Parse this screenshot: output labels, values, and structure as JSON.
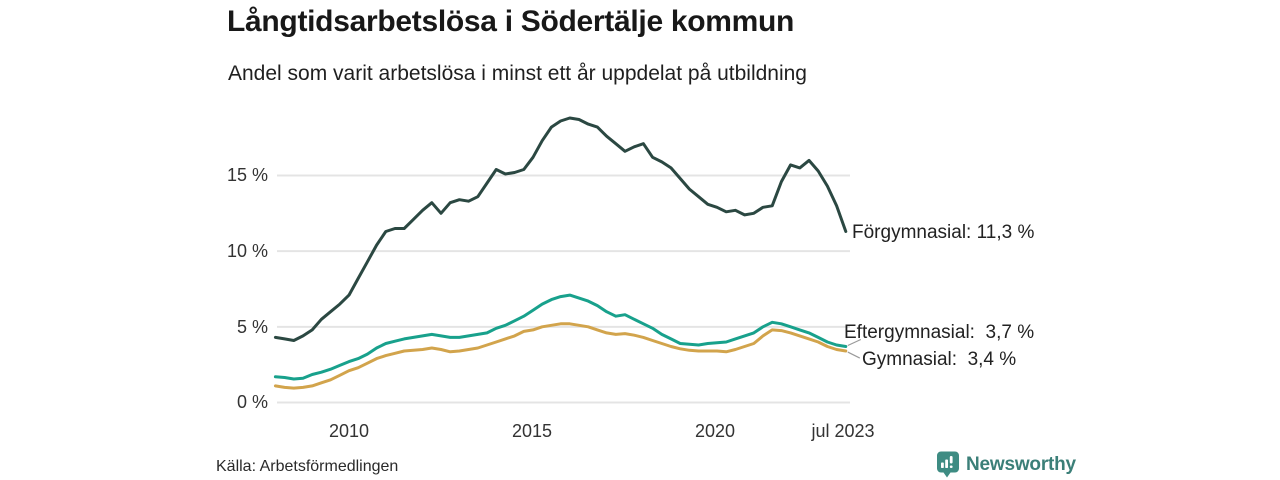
{
  "header": {
    "title": "Långtidsarbetslösa i Södertälje kommun",
    "subtitle": "Andel som varit arbetslösa i minst ett år uppdelat på utbildning"
  },
  "footer": {
    "source": "Källa: Arbetsförmedlingen",
    "logo_text": "Newsworthy"
  },
  "colors": {
    "forgymnasial": "#2b4842",
    "eftergymnasial": "#18a18c",
    "gymnasial": "#d2a44c",
    "gridline": "#e4e4e4",
    "connector": "#9a9a9a",
    "logo_teal": "#3e8c83"
  },
  "chart_data": {
    "type": "line",
    "title": "Långtidsarbetslösa i Södertälje kommun",
    "subtitle": "Andel som varit arbetslösa i minst ett år uppdelat på utbildning",
    "xlabel": "",
    "ylabel": "",
    "ylim": [
      0,
      19.5
    ],
    "xlim": [
      2008,
      2023.5
    ],
    "grid": "horizontal",
    "legend_position": "end-of-line-labels",
    "y_ticks": [
      0,
      5,
      10,
      15
    ],
    "y_tick_labels": [
      "0 %",
      "5 %",
      "10 %",
      "15 %"
    ],
    "x_tick_values": [
      2010,
      2015,
      2020,
      2023.5
    ],
    "x_tick_labels": [
      "2010",
      "2015",
      "2020",
      "jul 2023"
    ],
    "x": [
      2008.0,
      2008.25,
      2008.5,
      2008.75,
      2009.0,
      2009.25,
      2009.5,
      2009.75,
      2010.0,
      2010.25,
      2010.5,
      2010.75,
      2011.0,
      2011.25,
      2011.5,
      2011.75,
      2012.0,
      2012.25,
      2012.5,
      2012.75,
      2013.0,
      2013.25,
      2013.5,
      2013.75,
      2014.0,
      2014.25,
      2014.5,
      2014.75,
      2015.0,
      2015.25,
      2015.5,
      2015.75,
      2016.0,
      2016.25,
      2016.5,
      2016.75,
      2017.0,
      2017.25,
      2017.5,
      2017.75,
      2018.0,
      2018.25,
      2018.5,
      2018.75,
      2019.0,
      2019.25,
      2019.5,
      2019.75,
      2020.0,
      2020.25,
      2020.5,
      2020.75,
      2021.0,
      2021.25,
      2021.5,
      2021.75,
      2022.0,
      2022.25,
      2022.5,
      2022.75,
      2023.0,
      2023.25,
      2023.5
    ],
    "series": [
      {
        "id": "forgymnasial",
        "name": "Förgymnasial",
        "label": "Förgymnasial: 11,3 %",
        "end_value": 11.3,
        "color": "#2b4842",
        "values": [
          4.3,
          4.2,
          4.1,
          4.4,
          4.8,
          5.5,
          6.0,
          6.5,
          7.1,
          8.2,
          9.3,
          10.4,
          11.3,
          11.5,
          11.5,
          12.1,
          12.7,
          13.2,
          12.5,
          13.2,
          13.4,
          13.3,
          13.6,
          14.5,
          15.4,
          15.1,
          15.2,
          15.4,
          16.2,
          17.3,
          18.2,
          18.6,
          18.8,
          18.7,
          18.4,
          18.2,
          17.6,
          17.1,
          16.6,
          16.9,
          17.1,
          16.2,
          15.9,
          15.5,
          14.8,
          14.1,
          13.6,
          13.1,
          12.9,
          12.6,
          12.7,
          12.4,
          12.5,
          12.9,
          13.0,
          14.6,
          15.7,
          15.5,
          16.0,
          15.3,
          14.3,
          13.0,
          11.3
        ]
      },
      {
        "id": "eftergymnasial",
        "name": "Eftergymnasial",
        "label": "Eftergymnasial:  3,7 %",
        "end_value": 3.7,
        "color": "#18a18c",
        "values": [
          1.7,
          1.65,
          1.55,
          1.6,
          1.85,
          2.0,
          2.2,
          2.45,
          2.7,
          2.9,
          3.2,
          3.6,
          3.9,
          4.05,
          4.2,
          4.3,
          4.4,
          4.5,
          4.4,
          4.3,
          4.3,
          4.4,
          4.5,
          4.6,
          4.9,
          5.1,
          5.4,
          5.7,
          6.1,
          6.5,
          6.8,
          7.0,
          7.1,
          6.9,
          6.7,
          6.4,
          6.0,
          5.7,
          5.8,
          5.5,
          5.2,
          4.9,
          4.5,
          4.2,
          3.9,
          3.85,
          3.8,
          3.9,
          3.95,
          4.0,
          4.2,
          4.4,
          4.6,
          5.0,
          5.3,
          5.2,
          5.0,
          4.8,
          4.6,
          4.3,
          4.0,
          3.8,
          3.7
        ]
      },
      {
        "id": "gymnasial",
        "name": "Gymnasial",
        "label": "Gymnasial:  3,4 %",
        "end_value": 3.4,
        "color": "#d2a44c",
        "values": [
          1.1,
          1.0,
          0.95,
          1.0,
          1.1,
          1.3,
          1.5,
          1.8,
          2.1,
          2.3,
          2.6,
          2.9,
          3.1,
          3.25,
          3.4,
          3.45,
          3.5,
          3.6,
          3.5,
          3.35,
          3.4,
          3.5,
          3.6,
          3.8,
          4.0,
          4.2,
          4.4,
          4.7,
          4.8,
          5.0,
          5.1,
          5.2,
          5.2,
          5.1,
          5.0,
          4.8,
          4.6,
          4.5,
          4.55,
          4.45,
          4.3,
          4.1,
          3.9,
          3.7,
          3.55,
          3.45,
          3.4,
          3.4,
          3.4,
          3.35,
          3.5,
          3.7,
          3.9,
          4.4,
          4.8,
          4.75,
          4.6,
          4.4,
          4.2,
          4.0,
          3.7,
          3.5,
          3.4
        ]
      }
    ]
  }
}
